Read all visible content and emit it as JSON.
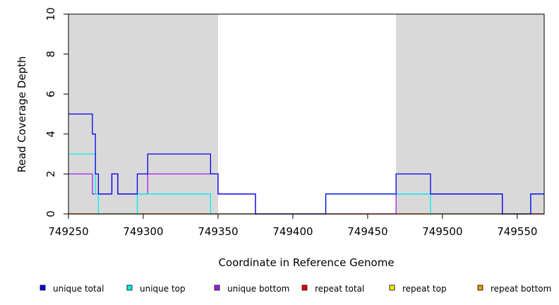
{
  "chart_data": {
    "type": "line",
    "title": "",
    "xlabel": "Coordinate in Reference Genome",
    "ylabel": "Read Coverage Depth",
    "xlim": [
      749250,
      749568
    ],
    "ylim": [
      0,
      10
    ],
    "x_ticks": [
      749250,
      749300,
      749350,
      749400,
      749450,
      749500,
      749550
    ],
    "y_ticks": [
      0,
      2,
      4,
      6,
      8,
      10
    ],
    "grid": false,
    "legend_position": "bottom",
    "shaded_regions": [
      {
        "x": [
          749250,
          749350
        ],
        "color": "#d9d9d9"
      },
      {
        "x": [
          749469,
          749568
        ],
        "color": "#d9d9d9"
      }
    ],
    "series": [
      {
        "name": "unique total",
        "color": "#0000ee",
        "step": [
          [
            749250,
            5
          ],
          [
            749266,
            4
          ],
          [
            749268,
            2
          ],
          [
            749270,
            1
          ],
          [
            749279,
            2
          ],
          [
            749283,
            1
          ],
          [
            749296,
            2
          ],
          [
            749303,
            3
          ],
          [
            749345,
            2
          ],
          [
            749350,
            1
          ],
          [
            749375,
            0
          ],
          [
            749422,
            1
          ],
          [
            749469,
            2
          ],
          [
            749492,
            1
          ],
          [
            749540,
            0
          ],
          [
            749559,
            1
          ],
          [
            749568,
            1
          ]
        ]
      },
      {
        "name": "unique top",
        "color": "#00eeee",
        "step": [
          [
            749250,
            3
          ],
          [
            749268,
            1
          ],
          [
            749270,
            0
          ],
          [
            749296,
            1
          ],
          [
            749345,
            0
          ],
          [
            749422,
            1
          ],
          [
            749469,
            1
          ],
          [
            749492,
            0
          ],
          [
            749559,
            1
          ],
          [
            749568,
            1
          ]
        ]
      },
      {
        "name": "unique bottom",
        "color": "#a020f0",
        "step": [
          [
            749250,
            2
          ],
          [
            749266,
            1
          ],
          [
            749279,
            2
          ],
          [
            749283,
            1
          ],
          [
            749303,
            2
          ],
          [
            749350,
            1
          ],
          [
            749375,
            0
          ],
          [
            749469,
            1
          ],
          [
            749492,
            1
          ],
          [
            749540,
            0
          ],
          [
            749568,
            0
          ]
        ]
      },
      {
        "name": "repeat total",
        "color": "#ee0000",
        "step": [
          [
            749250,
            0
          ],
          [
            749568,
            0
          ]
        ]
      },
      {
        "name": "repeat top",
        "color": "#eeee00",
        "step": [
          [
            749250,
            0
          ],
          [
            749568,
            0
          ]
        ]
      },
      {
        "name": "repeat bottom",
        "color": "#ee9a00",
        "step": [
          [
            749250,
            0
          ],
          [
            749568,
            0
          ]
        ]
      }
    ]
  }
}
